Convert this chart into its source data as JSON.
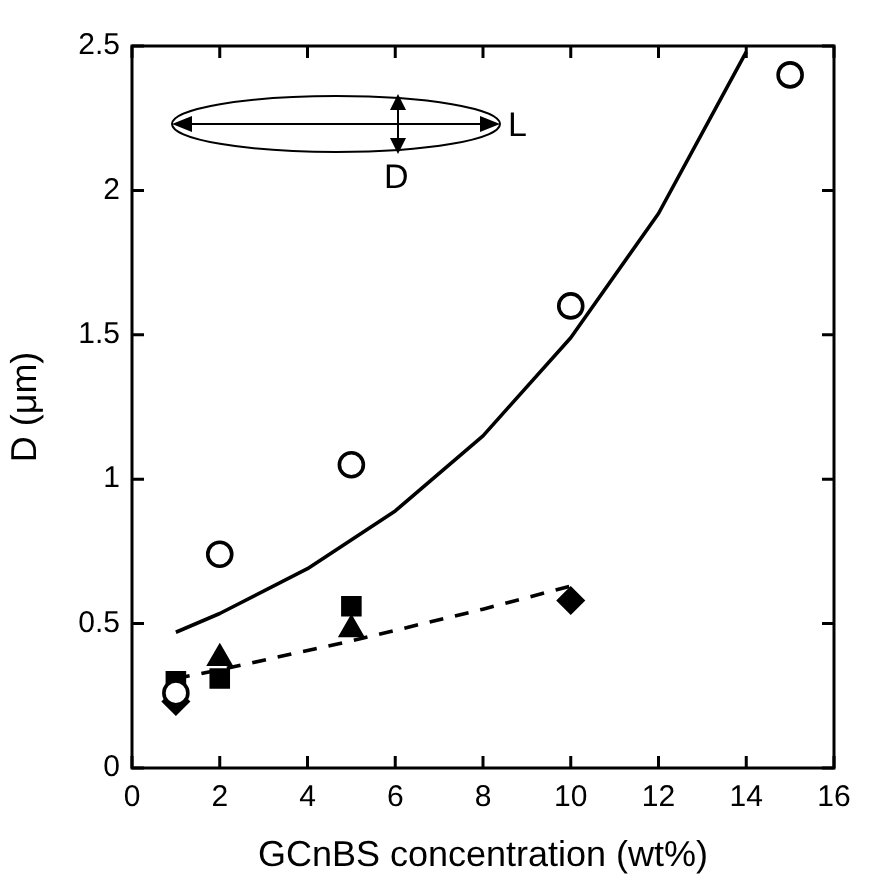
{
  "chart_data": {
    "type": "scatter",
    "xlabel": "GCnBS concentration (wt%)",
    "ylabel": "D (μm)",
    "annotations": [
      "L",
      "D"
    ],
    "xlim": [
      0,
      16
    ],
    "xticks": [
      0,
      2,
      4,
      6,
      8,
      10,
      12,
      14,
      16
    ],
    "ylim": [
      0,
      2.5
    ],
    "yticks": [
      0,
      0.5,
      1,
      1.5,
      2,
      2.5
    ],
    "grid": false,
    "legend": false,
    "series": [
      {
        "type": "scatter",
        "marker": "circle",
        "color": "#000000",
        "x": [
          1,
          2,
          5,
          10,
          15
        ],
        "values": [
          0.26,
          0.74,
          1.05,
          1.6,
          2.4
        ]
      },
      {
        "type": "scatter",
        "marker": "square",
        "color": "#000000",
        "x": [
          1,
          2,
          5
        ],
        "values": [
          0.3,
          0.31,
          0.56
        ]
      },
      {
        "type": "scatter",
        "marker": "triangle",
        "color": "#000000",
        "x": [
          2,
          5
        ],
        "values": [
          0.38,
          0.48
        ]
      },
      {
        "type": "scatter",
        "marker": "diamond",
        "color": "#000000",
        "x": [
          1,
          10
        ],
        "values": [
          0.23,
          0.58
        ]
      },
      {
        "type": "line",
        "line_style": "solid",
        "marker": "none",
        "color": "#000000",
        "x": [
          1,
          2,
          4,
          6,
          8,
          10,
          12,
          14
        ],
        "values": [
          0.47,
          0.535,
          0.69,
          0.89,
          1.15,
          1.49,
          1.92,
          2.48
        ]
      },
      {
        "type": "line",
        "line_style": "dashed",
        "marker": "none",
        "color": "#000000",
        "x": [
          1,
          2,
          5,
          8,
          10
        ],
        "values": [
          0.31,
          0.34,
          0.44,
          0.55,
          0.63
        ]
      }
    ]
  }
}
